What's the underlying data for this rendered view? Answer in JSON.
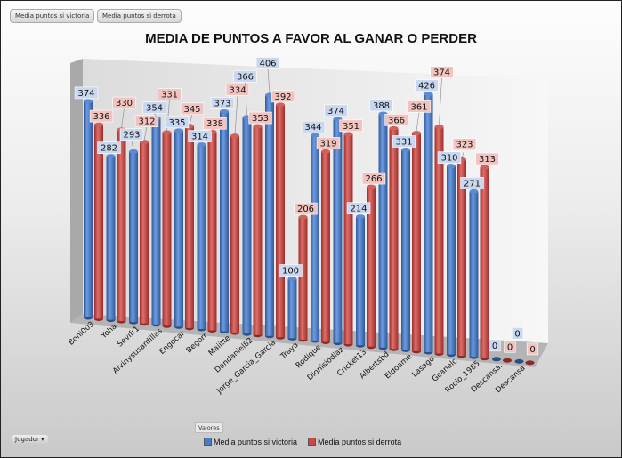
{
  "filter_buttons": [
    "Media puntos si victoria",
    "Media puntos si derrota"
  ],
  "axis_field": "Jugador",
  "axis_dropdown_icon": "▾",
  "values_field": "Valores",
  "colors": {
    "victoria": "#4a7cc4",
    "derrota": "#c84a46"
  },
  "chart_data": {
    "type": "bar",
    "title": "MEDIA DE PUNTOS A FAVOR AL GANAR O PERDER",
    "xlabel": "",
    "ylabel": "",
    "legend_position": "bottom",
    "categories": [
      "Boni003",
      "Yoha",
      "Sevifr1",
      "Alvinysusardillas",
      "Engocar",
      "Begorr",
      "Maiitte",
      "Dandaniel82",
      "Jorge_Garcia_Garcia",
      "Traya",
      "Rodique",
      "Dionisiodiaz",
      "Cricket13",
      "Albertsbd",
      "Eldoame",
      "Lasago",
      "Gcanelc",
      "Rocio_1985",
      "Descansa.",
      "Descansa"
    ],
    "series": [
      {
        "name": "Media puntos si victoria",
        "values": [
          374,
          282,
          293,
          354,
          335,
          314,
          373,
          366,
          406,
          100,
          344,
          374,
          214,
          388,
          331,
          426,
          310,
          271,
          0,
          0
        ]
      },
      {
        "name": "Media puntos si derrota",
        "values": [
          336,
          330,
          312,
          331,
          345,
          338,
          334,
          353,
          392,
          206,
          319,
          351,
          266,
          366,
          361,
          374,
          323,
          313,
          0,
          0
        ]
      }
    ]
  }
}
